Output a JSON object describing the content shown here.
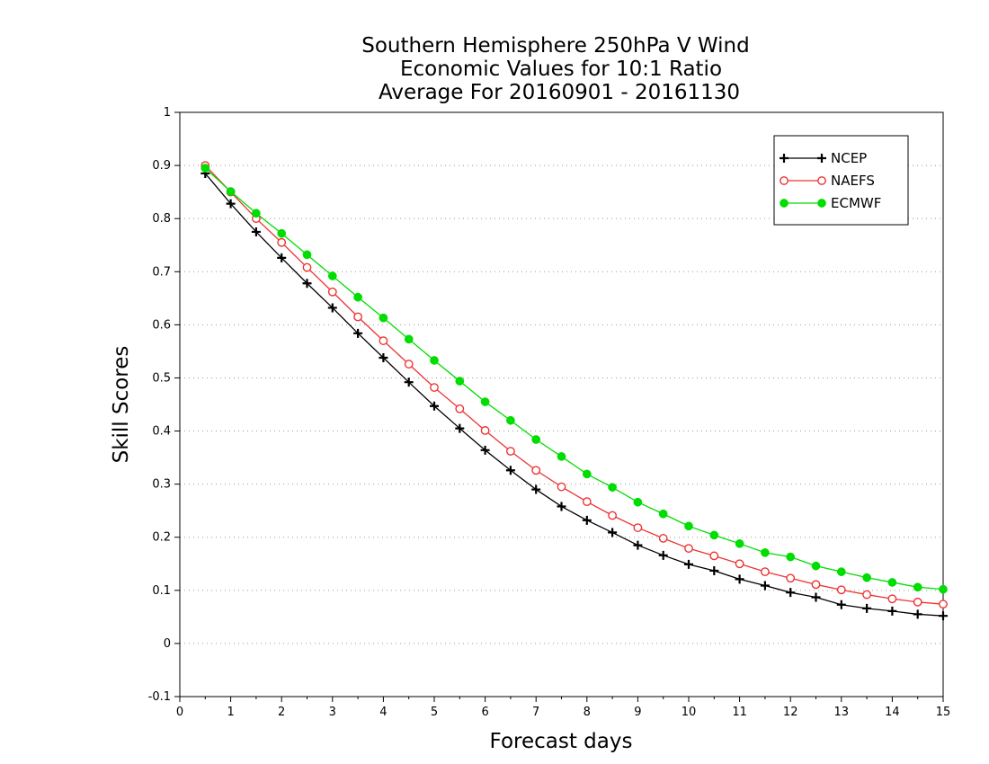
{
  "chart_data": {
    "type": "line",
    "title": [
      "Southern Hemisphere 250hPa V Wind",
      "Economic Values for 10:1 Ratio",
      "Average For 20160901 - 20161130"
    ],
    "xlabel": "Forecast days",
    "ylabel": "Skill Scores",
    "xlim": [
      0,
      15
    ],
    "ylim": [
      -0.1,
      1
    ],
    "xticks": [
      0,
      1,
      2,
      3,
      4,
      5,
      6,
      7,
      8,
      9,
      10,
      11,
      12,
      13,
      14,
      15
    ],
    "yticks": [
      -0.1,
      0,
      0.1,
      0.2,
      0.3,
      0.4,
      0.5,
      0.6,
      0.7,
      0.8,
      0.9,
      1
    ],
    "ytick_labels": [
      "-0.1",
      "0",
      "0.1",
      "0.2",
      "0.3",
      "0.4",
      "0.5",
      "0.6",
      "0.7",
      "0.8",
      "0.9",
      "1"
    ],
    "xtick_labels": [
      "0",
      "1",
      "2",
      "3",
      "4",
      "5",
      "6",
      "7",
      "8",
      "9",
      "10",
      "11",
      "12",
      "13",
      "14",
      "15"
    ],
    "grid": "horizontal dotted",
    "legend_position": "top-right",
    "x": [
      0.5,
      1,
      1.5,
      2,
      2.5,
      3,
      3.5,
      4,
      4.5,
      5,
      5.5,
      6,
      6.5,
      7,
      7.5,
      8,
      8.5,
      9,
      9.5,
      10,
      10.5,
      11,
      11.5,
      12,
      12.5,
      13,
      13.5,
      14,
      14.5,
      15
    ],
    "series": [
      {
        "name": "NCEP",
        "color": "#000000",
        "marker": "plus",
        "values": [
          0.885,
          0.828,
          0.775,
          0.726,
          0.678,
          0.632,
          0.584,
          0.538,
          0.492,
          0.447,
          0.405,
          0.364,
          0.326,
          0.29,
          0.258,
          0.232,
          0.209,
          0.185,
          0.166,
          0.149,
          0.137,
          0.121,
          0.109,
          0.096,
          0.087,
          0.073,
          0.066,
          0.061,
          0.055,
          0.052
        ]
      },
      {
        "name": "NAEFS",
        "color": "#ee3333",
        "marker": "open-circle",
        "values": [
          0.9,
          0.85,
          0.8,
          0.755,
          0.708,
          0.662,
          0.615,
          0.57,
          0.526,
          0.482,
          0.442,
          0.401,
          0.362,
          0.326,
          0.295,
          0.267,
          0.241,
          0.218,
          0.198,
          0.179,
          0.165,
          0.15,
          0.135,
          0.123,
          0.111,
          0.101,
          0.092,
          0.084,
          0.078,
          0.074
        ]
      },
      {
        "name": "ECMWF",
        "color": "#00dd00",
        "marker": "filled-circle",
        "values": [
          0.895,
          0.851,
          0.81,
          0.772,
          0.732,
          0.692,
          0.652,
          0.613,
          0.573,
          0.533,
          0.494,
          0.455,
          0.42,
          0.384,
          0.352,
          0.319,
          0.294,
          0.266,
          0.244,
          0.221,
          0.204,
          0.188,
          0.171,
          0.163,
          0.146,
          0.135,
          0.124,
          0.115,
          0.106,
          0.102
        ]
      }
    ]
  }
}
